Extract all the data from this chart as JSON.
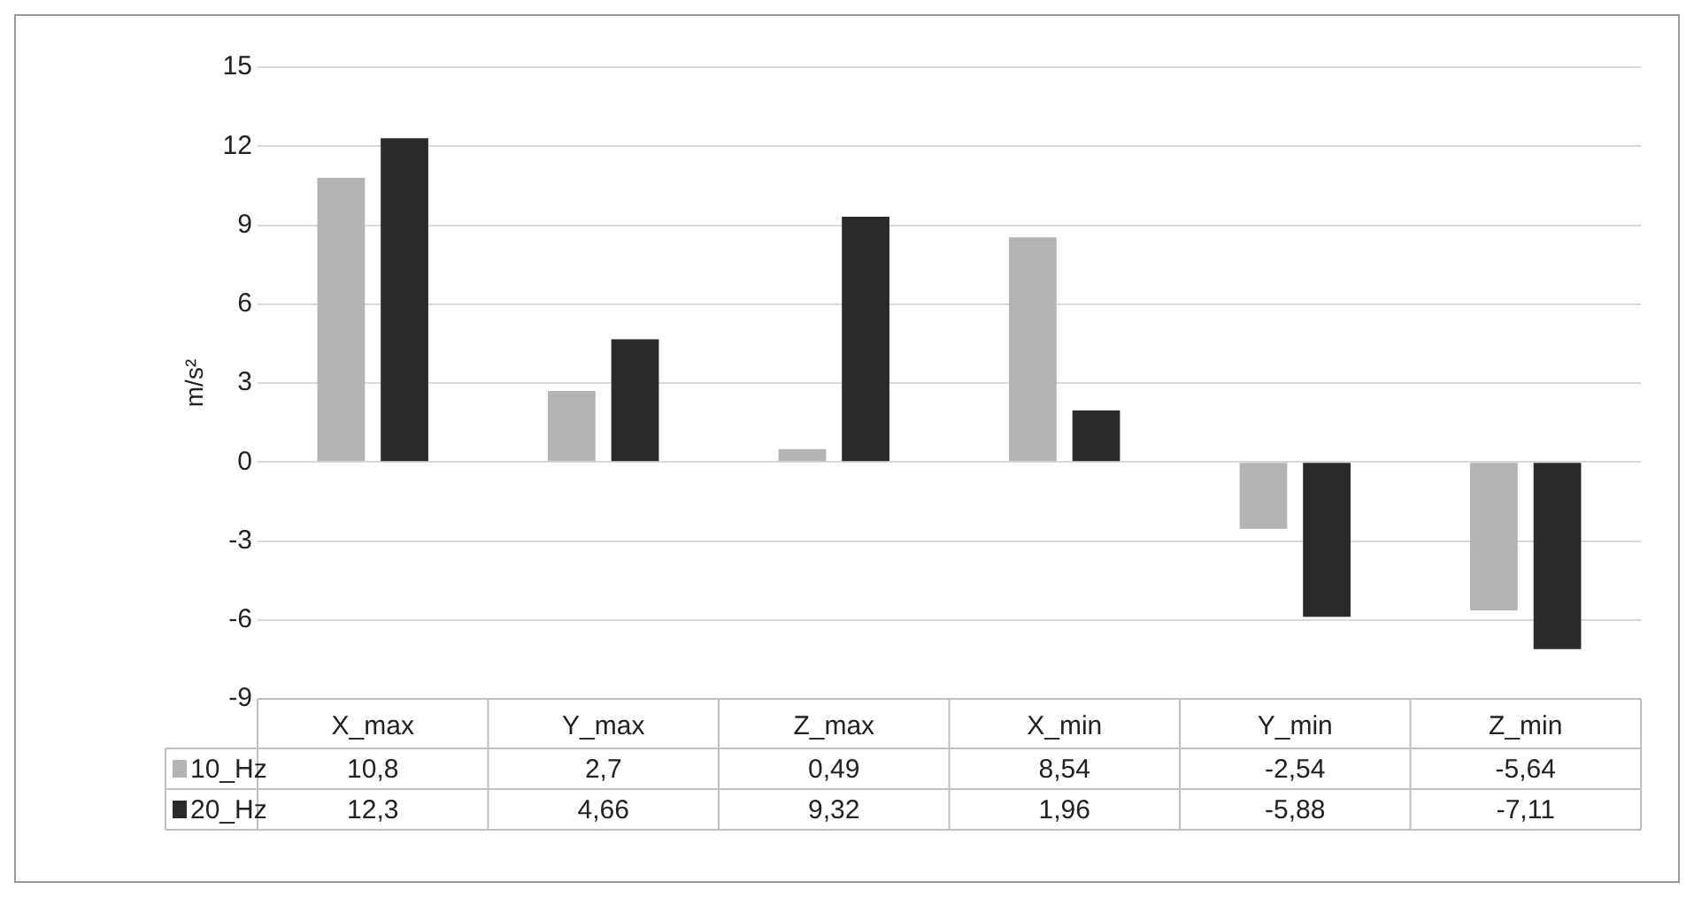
{
  "chart_data": {
    "type": "bar",
    "ylabel": "m/s²",
    "categories": [
      "X_max",
      "Y_max",
      "Z_max",
      "X_min",
      "Y_min",
      "Z_min"
    ],
    "series": [
      {
        "name": "10_Hz",
        "color": "#b4b4b4",
        "values": [
          10.8,
          2.7,
          0.49,
          8.54,
          -2.54,
          -5.64
        ],
        "value_labels": [
          "10,8",
          "2,7",
          "0,49",
          "8,54",
          "-2,54",
          "-5,64"
        ]
      },
      {
        "name": "20_Hz",
        "color": "#2a2a2a",
        "values": [
          12.3,
          4.66,
          9.32,
          1.96,
          -5.88,
          -7.11
        ],
        "value_labels": [
          "12,3",
          "4,66",
          "9,32",
          "1,96",
          "-5,88",
          "-7,11"
        ]
      }
    ],
    "ylim": [
      -9,
      15
    ],
    "yticks": [
      -9,
      -6,
      -3,
      0,
      3,
      6,
      9,
      12,
      15
    ],
    "grid": "y",
    "legend": "bottom left"
  }
}
